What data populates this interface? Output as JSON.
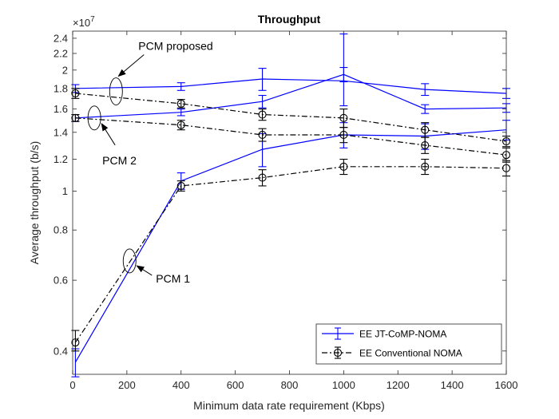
{
  "chart_data": {
    "type": "line",
    "title": "Throughput",
    "xlabel": "Minimum data rate requirement (Kbps)",
    "ylabel": "Average throughput (b/s)",
    "y_exponent_label": "×10",
    "y_exponent_power": "7",
    "y_scale": "log",
    "xlim": [
      0,
      1600
    ],
    "ylim": [
      0.35,
      2.5
    ],
    "x_ticks": [
      0,
      200,
      400,
      600,
      800,
      1000,
      1200,
      1400,
      1600
    ],
    "x_tick_labels": [
      "0",
      "200",
      "400",
      "600",
      "800",
      "1000",
      "1200",
      "1400",
      "1600"
    ],
    "y_ticks": [
      0.4,
      0.6,
      0.8,
      1,
      1.2,
      1.4,
      1.6,
      1.8,
      2,
      2.2,
      2.4
    ],
    "y_tick_labels": [
      "0.4",
      "0.6",
      "0.8",
      "1",
      "1.2",
      "1.4",
      "1.6",
      "1.8",
      "2",
      "2.2",
      "2.4"
    ],
    "grid": false,
    "legend_position": "bottom-right",
    "x": [
      10,
      400,
      700,
      1000,
      1300,
      1600
    ],
    "series": [
      {
        "name": "EE JT-CoMP-NOMA",
        "group": "PCM proposed",
        "color": "#0000ff",
        "dash": "solid",
        "marker": "none",
        "values": [
          1.8,
          1.82,
          1.9,
          1.88,
          1.79,
          1.75
        ],
        "err_low": [
          0.04,
          0.04,
          0.12,
          0.25,
          0.06,
          0.05
        ],
        "err_high": [
          0.04,
          0.04,
          0.12,
          0.58,
          0.06,
          0.05
        ]
      },
      {
        "name": "EE JT-CoMP-NOMA",
        "group": "PCM 2",
        "color": "#0000ff",
        "dash": "solid",
        "marker": "none",
        "values": [
          1.52,
          1.57,
          1.67,
          1.95,
          1.6,
          1.61
        ],
        "err_low": [
          0.03,
          0.03,
          0.06,
          0.08,
          0.04,
          0.04
        ],
        "err_high": [
          0.03,
          0.03,
          0.06,
          0.08,
          0.04,
          0.04
        ]
      },
      {
        "name": "EE JT-CoMP-NOMA",
        "group": "PCM 1",
        "color": "#0000ff",
        "dash": "solid",
        "marker": "none",
        "values": [
          0.375,
          1.06,
          1.27,
          1.38,
          1.37,
          1.42
        ],
        "err_low": [
          0.03,
          0.05,
          0.12,
          0.1,
          0.1,
          0.08
        ],
        "err_high": [
          0.03,
          0.05,
          0.12,
          0.1,
          0.1,
          0.08
        ]
      },
      {
        "name": "EE Conventional NOMA",
        "group": "PCM proposed",
        "color": "#000000",
        "dash": "dashdot",
        "marker": "circle",
        "values": [
          1.75,
          1.65,
          1.55,
          1.52,
          1.42,
          1.33
        ],
        "err_low": [
          0.05,
          0.04,
          0.05,
          0.08,
          0.06,
          0.04
        ],
        "err_high": [
          0.05,
          0.04,
          0.05,
          0.08,
          0.06,
          0.04
        ]
      },
      {
        "name": "EE Conventional NOMA",
        "group": "PCM 2",
        "color": "#000000",
        "dash": "dashdot",
        "marker": "circle",
        "values": [
          1.52,
          1.46,
          1.38,
          1.38,
          1.3,
          1.23
        ],
        "err_low": [
          0.03,
          0.04,
          0.05,
          0.06,
          0.06,
          0.05
        ],
        "err_high": [
          0.03,
          0.04,
          0.05,
          0.06,
          0.06,
          0.05
        ]
      },
      {
        "name": "EE Conventional NOMA",
        "group": "PCM 1",
        "color": "#000000",
        "dash": "dashdot",
        "marker": "circle",
        "values": [
          0.42,
          1.03,
          1.08,
          1.15,
          1.15,
          1.14
        ],
        "err_low": [
          0.02,
          0.03,
          0.05,
          0.05,
          0.05,
          0.05
        ],
        "err_high": [
          0.03,
          0.03,
          0.05,
          0.05,
          0.05,
          0.05
        ]
      }
    ],
    "legend": [
      {
        "label": "EE JT-CoMP-NOMA",
        "color": "#0000ff",
        "dash": "solid",
        "marker": "none"
      },
      {
        "label": "EE Conventional NOMA",
        "color": "#000000",
        "dash": "dashdot",
        "marker": "circle"
      }
    ],
    "annotations": [
      {
        "text": "PCM proposed",
        "target_x": 160,
        "target_y": 1.77
      },
      {
        "text": "PCM 2",
        "target_x": 80,
        "target_y": 1.52
      },
      {
        "text": "PCM 1",
        "target_x": 210,
        "target_y": 0.67
      }
    ]
  }
}
